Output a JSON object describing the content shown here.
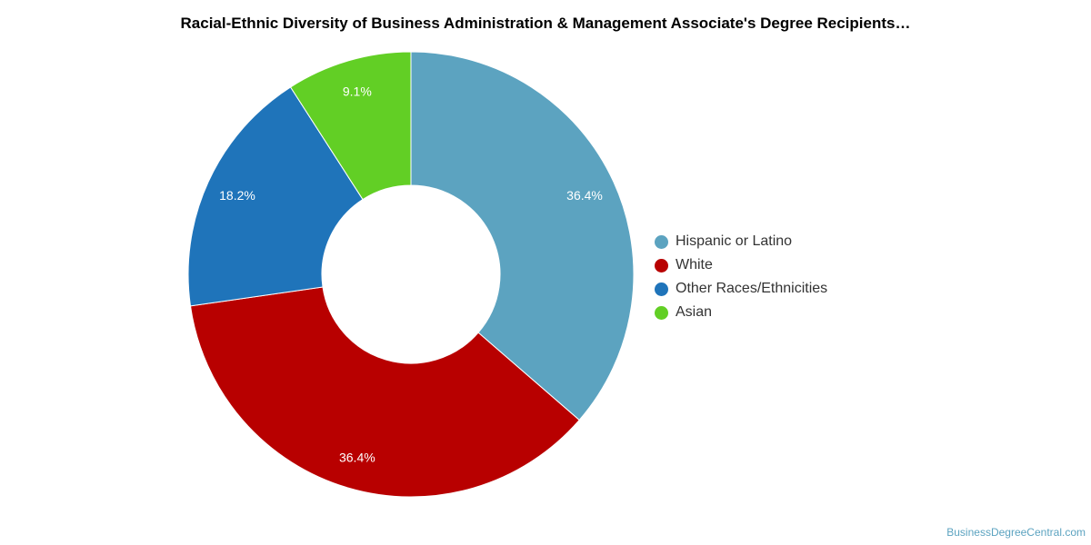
{
  "chart_data": {
    "type": "pie",
    "title": "Racial-Ethnic Diversity of Business Administration & Management Associate's Degree Recipients…",
    "slices": [
      {
        "label": "Hispanic or Latino",
        "value": 36.4,
        "value_label": "36.4%",
        "color": "#5ca3c0"
      },
      {
        "label": "White",
        "value": 36.4,
        "value_label": "36.4%",
        "color": "#b80000"
      },
      {
        "label": "Other Races/Ethnicities",
        "value": 18.2,
        "value_label": "18.2%",
        "color": "#1f74ba"
      },
      {
        "label": "Asian",
        "value": 9.1,
        "value_label": "9.1%",
        "color": "#62cf25"
      }
    ],
    "donut": true,
    "start": "top",
    "direction": "clockwise",
    "legend_position": "right"
  },
  "watermark": "BusinessDegreeCentral.com"
}
